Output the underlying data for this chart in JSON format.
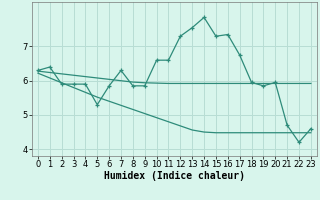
{
  "x": [
    0,
    1,
    2,
    3,
    4,
    5,
    6,
    7,
    8,
    9,
    10,
    11,
    12,
    13,
    14,
    15,
    16,
    17,
    18,
    19,
    20,
    21,
    22,
    23
  ],
  "y_main": [
    6.3,
    6.4,
    5.9,
    5.9,
    5.9,
    5.3,
    5.85,
    6.3,
    5.85,
    5.85,
    6.6,
    6.6,
    7.3,
    7.55,
    7.85,
    7.3,
    7.35,
    6.75,
    5.95,
    5.85,
    5.95,
    4.7,
    4.2,
    4.6
  ],
  "y_trend1": [
    6.28,
    6.24,
    6.2,
    6.16,
    6.12,
    6.08,
    6.04,
    6.0,
    5.96,
    5.94,
    5.93,
    5.92,
    5.92,
    5.92,
    5.92,
    5.92,
    5.92,
    5.92,
    5.92,
    5.92,
    5.92,
    5.92,
    5.92,
    5.92
  ],
  "y_trend2": [
    6.22,
    6.08,
    5.94,
    5.8,
    5.66,
    5.52,
    5.4,
    5.28,
    5.16,
    5.04,
    4.92,
    4.8,
    4.68,
    4.56,
    4.5,
    4.48,
    4.48,
    4.48,
    4.48,
    4.48,
    4.48,
    4.48,
    4.48,
    4.48
  ],
  "color": "#2E8B7A",
  "bg_color": "#D8F5EC",
  "grid_color": "#B8DDD4",
  "xlabel": "Humidex (Indice chaleur)",
  "xlabel_fontsize": 7,
  "tick_fontsize": 6,
  "ylim": [
    3.8,
    8.3
  ],
  "xlim": [
    -0.5,
    23.5
  ],
  "yticks": [
    4,
    5,
    6,
    7
  ],
  "xticks": [
    0,
    1,
    2,
    3,
    4,
    5,
    6,
    7,
    8,
    9,
    10,
    11,
    12,
    13,
    14,
    15,
    16,
    17,
    18,
    19,
    20,
    21,
    22,
    23
  ]
}
